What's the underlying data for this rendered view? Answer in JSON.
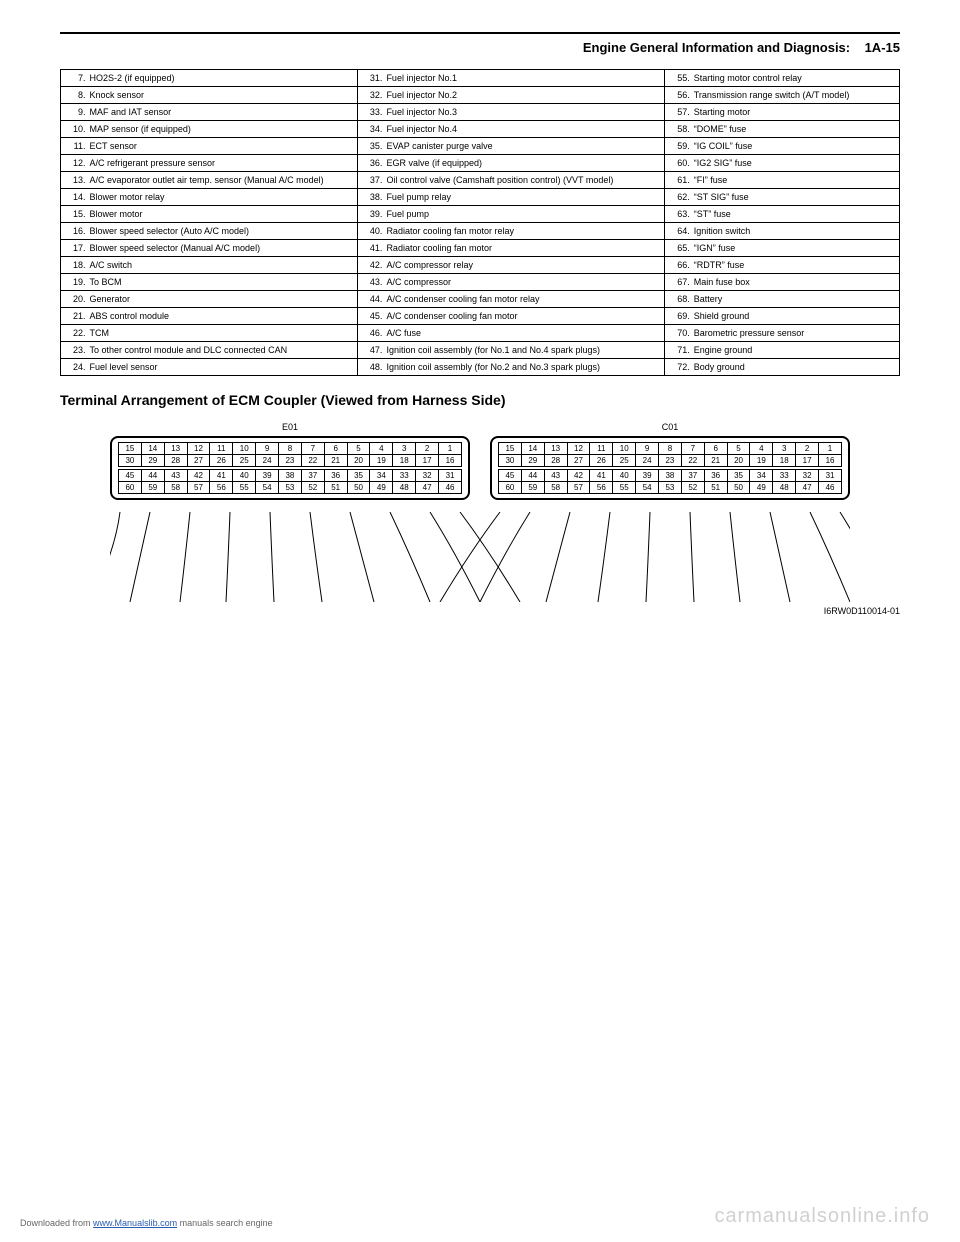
{
  "header": {
    "section_title": "Engine General Information and Diagnosis:",
    "page_num": "1A-15"
  },
  "legend": [
    {
      "a": [
        "7.",
        "HO2S-2 (if equipped)"
      ],
      "b": [
        "31.",
        "Fuel injector No.1"
      ],
      "c": [
        "55.",
        "Starting motor control relay"
      ]
    },
    {
      "a": [
        "8.",
        "Knock sensor"
      ],
      "b": [
        "32.",
        "Fuel injector No.2"
      ],
      "c": [
        "56.",
        "Transmission range switch (A/T model)"
      ]
    },
    {
      "a": [
        "9.",
        "MAF and IAT sensor"
      ],
      "b": [
        "33.",
        "Fuel injector No.3"
      ],
      "c": [
        "57.",
        "Starting motor"
      ]
    },
    {
      "a": [
        "10.",
        "MAP sensor (if equipped)"
      ],
      "b": [
        "34.",
        "Fuel injector No.4"
      ],
      "c": [
        "58.",
        "“DOME” fuse"
      ]
    },
    {
      "a": [
        "11.",
        "ECT sensor"
      ],
      "b": [
        "35.",
        "EVAP canister purge valve"
      ],
      "c": [
        "59.",
        "“IG COIL” fuse"
      ]
    },
    {
      "a": [
        "12.",
        "A/C refrigerant pressure sensor"
      ],
      "b": [
        "36.",
        "EGR valve (if equipped)"
      ],
      "c": [
        "60.",
        "“IG2 SIG” fuse"
      ]
    },
    {
      "a": [
        "13.",
        "A/C evaporator outlet air temp. sensor (Manual A/C model)"
      ],
      "b": [
        "37.",
        "Oil control valve (Camshaft position control) (VVT model)"
      ],
      "c": [
        "61.",
        "“FI” fuse"
      ]
    },
    {
      "a": [
        "14.",
        "Blower motor relay"
      ],
      "b": [
        "38.",
        "Fuel pump relay"
      ],
      "c": [
        "62.",
        "“ST SIG” fuse"
      ]
    },
    {
      "a": [
        "15.",
        "Blower motor"
      ],
      "b": [
        "39.",
        "Fuel pump"
      ],
      "c": [
        "63.",
        "“ST” fuse"
      ]
    },
    {
      "a": [
        "16.",
        "Blower speed selector (Auto A/C model)"
      ],
      "b": [
        "40.",
        "Radiator cooling fan motor relay"
      ],
      "c": [
        "64.",
        "Ignition switch"
      ]
    },
    {
      "a": [
        "17.",
        "Blower speed selector (Manual A/C model)"
      ],
      "b": [
        "41.",
        "Radiator cooling fan motor"
      ],
      "c": [
        "65.",
        "“IGN” fuse"
      ]
    },
    {
      "a": [
        "18.",
        "A/C switch"
      ],
      "b": [
        "42.",
        "A/C compressor relay"
      ],
      "c": [
        "66.",
        "“RDTR” fuse"
      ]
    },
    {
      "a": [
        "19.",
        "To BCM"
      ],
      "b": [
        "43.",
        "A/C compressor"
      ],
      "c": [
        "67.",
        "Main fuse box"
      ]
    },
    {
      "a": [
        "20.",
        "Generator"
      ],
      "b": [
        "44.",
        "A/C condenser cooling fan motor relay"
      ],
      "c": [
        "68.",
        "Battery"
      ]
    },
    {
      "a": [
        "21.",
        "ABS control module"
      ],
      "b": [
        "45.",
        "A/C condenser cooling fan motor"
      ],
      "c": [
        "69.",
        "Shield ground"
      ]
    },
    {
      "a": [
        "22.",
        "TCM"
      ],
      "b": [
        "46.",
        "A/C fuse"
      ],
      "c": [
        "70.",
        "Barometric pressure sensor"
      ]
    },
    {
      "a": [
        "23.",
        "To other control module and DLC connected CAN"
      ],
      "b": [
        "47.",
        "Ignition coil assembly (for No.1 and No.4 spark plugs)"
      ],
      "c": [
        "71.",
        "Engine ground"
      ]
    },
    {
      "a": [
        "24.",
        "Fuel level sensor"
      ],
      "b": [
        "48.",
        "Ignition coil assembly (for No.2 and No.3 spark plugs)"
      ],
      "c": [
        "72.",
        "Body ground"
      ]
    }
  ],
  "section_title": "Terminal Arrangement of ECM Coupler (Viewed from Harness Side)",
  "connectors": {
    "left_label": "E01",
    "right_label": "C01",
    "rows": [
      [
        "15",
        "14",
        "13",
        "12",
        "11",
        "10",
        "9",
        "8",
        "7",
        "6",
        "5",
        "4",
        "3",
        "2",
        "1"
      ],
      [
        "30",
        "29",
        "28",
        "27",
        "26",
        "25",
        "24",
        "23",
        "22",
        "21",
        "20",
        "19",
        "18",
        "17",
        "16"
      ],
      [
        "45",
        "44",
        "43",
        "42",
        "41",
        "40",
        "39",
        "38",
        "37",
        "36",
        "35",
        "34",
        "33",
        "32",
        "31"
      ],
      [
        "60",
        "59",
        "58",
        "57",
        "56",
        "55",
        "54",
        "53",
        "52",
        "51",
        "50",
        "49",
        "48",
        "47",
        "46"
      ]
    ]
  },
  "figure_id": "I6RW0D110014-01",
  "footer": {
    "prefix": "Downloaded from ",
    "link": "www.Manualslib.com",
    "suffix": " manuals search engine"
  },
  "watermark": "carmanualsonline.info"
}
